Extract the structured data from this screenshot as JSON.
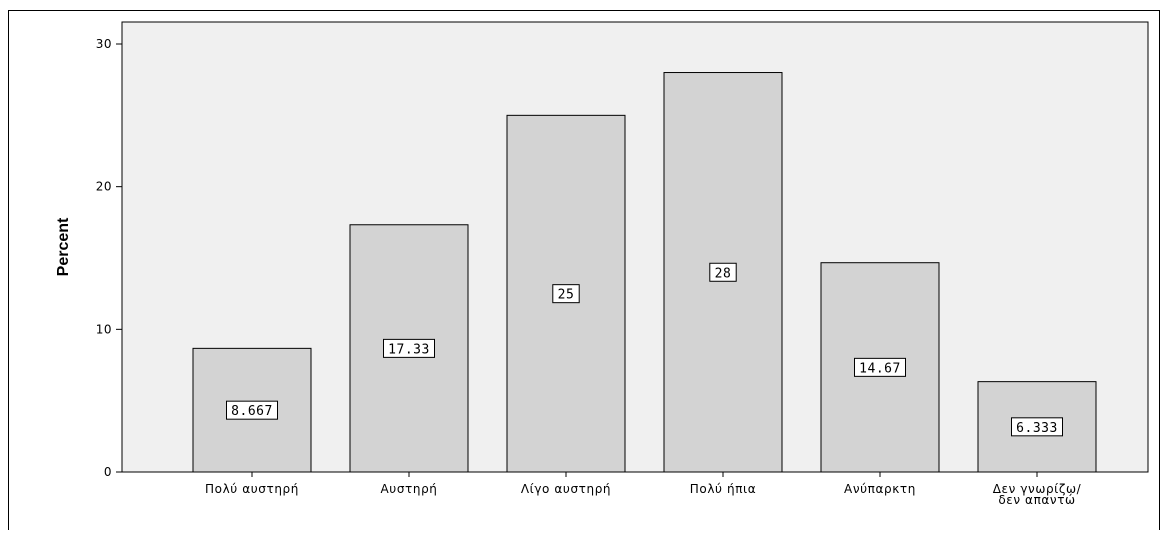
{
  "chart_data": {
    "type": "bar",
    "title": "",
    "xlabel": "",
    "ylabel": "Percent",
    "ylim": [
      0,
      30
    ],
    "yticks": [
      0,
      10,
      20,
      30
    ],
    "grid": false,
    "categories": [
      [
        "Πολύ αυστηρή"
      ],
      [
        "Αυστηρή"
      ],
      [
        "Λίγο αυστηρή"
      ],
      [
        "Πολύ ήπια"
      ],
      [
        "Ανύπαρκτη"
      ],
      [
        "Δεν γνωρίζω/",
        "δεν απαντώ"
      ]
    ],
    "values": [
      8.667,
      17.33,
      25,
      28,
      14.67,
      6.333
    ],
    "data_labels": [
      "8.667",
      "17.33",
      "25",
      "28",
      "14.67",
      "6.333"
    ],
    "colors": {
      "plot_background": "#f0f0f0",
      "bar_fill": "#d3d3d3",
      "bar_stroke": "#000000"
    }
  }
}
